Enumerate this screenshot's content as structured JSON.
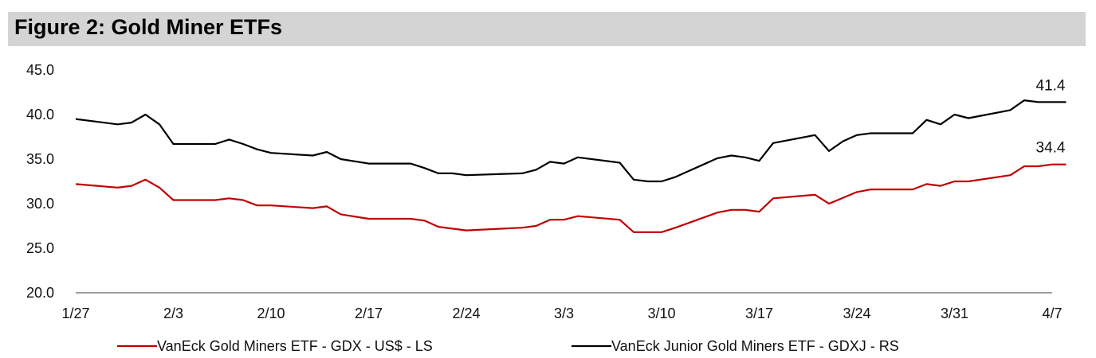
{
  "title": "Figure 2: Gold Miner ETFs",
  "chart_data": {
    "type": "line",
    "title": "Figure 2: Gold Miner ETFs",
    "xlabel": "",
    "ylabel": "",
    "ylim": [
      20,
      45
    ],
    "yticks": [
      "20.0",
      "25.0",
      "30.0",
      "35.0",
      "40.0",
      "45.0"
    ],
    "ytick_values": [
      20,
      25,
      30,
      35,
      40,
      45
    ],
    "xlim": [
      0,
      70
    ],
    "xticks": [
      {
        "label": "1/27",
        "x": 0
      },
      {
        "label": "2/3",
        "x": 7
      },
      {
        "label": "2/10",
        "x": 14
      },
      {
        "label": "2/17",
        "x": 21
      },
      {
        "label": "2/24",
        "x": 28
      },
      {
        "label": "3/3",
        "x": 35
      },
      {
        "label": "3/10",
        "x": 42
      },
      {
        "label": "3/17",
        "x": 49
      },
      {
        "label": "3/24",
        "x": 56
      },
      {
        "label": "3/31",
        "x": 63
      },
      {
        "label": "4/7",
        "x": 70
      }
    ],
    "series": [
      {
        "name": "VanEck Gold Miners ETF  - GDX  - US$ - LS",
        "color": "#c00000",
        "end_label": "34.4",
        "points": [
          [
            0,
            32.2
          ],
          [
            3,
            31.8
          ],
          [
            4,
            32.0
          ],
          [
            5,
            32.7
          ],
          [
            6,
            31.8
          ],
          [
            7,
            30.4
          ],
          [
            8,
            30.4
          ],
          [
            10,
            30.4
          ],
          [
            11,
            30.6
          ],
          [
            12,
            30.4
          ],
          [
            13,
            29.8
          ],
          [
            14,
            29.8
          ],
          [
            17,
            29.5
          ],
          [
            18,
            29.7
          ],
          [
            19,
            28.8
          ],
          [
            21,
            28.3
          ],
          [
            24,
            28.3
          ],
          [
            25,
            28.1
          ],
          [
            26,
            27.4
          ],
          [
            28,
            27.0
          ],
          [
            32,
            27.3
          ],
          [
            33,
            27.5
          ],
          [
            34,
            28.2
          ],
          [
            35,
            28.2
          ],
          [
            36,
            28.6
          ],
          [
            39,
            28.2
          ],
          [
            40,
            26.8
          ],
          [
            42,
            26.8
          ],
          [
            43,
            27.3
          ],
          [
            46,
            29.0
          ],
          [
            47,
            29.3
          ],
          [
            48,
            29.3
          ],
          [
            49,
            29.1
          ],
          [
            50,
            30.6
          ],
          [
            53,
            31.0
          ],
          [
            54,
            30.0
          ],
          [
            56,
            31.3
          ],
          [
            57,
            31.6
          ],
          [
            60,
            31.6
          ],
          [
            61,
            32.2
          ],
          [
            62,
            32.0
          ],
          [
            63,
            32.5
          ],
          [
            64,
            32.5
          ],
          [
            67,
            33.2
          ],
          [
            68,
            34.2
          ],
          [
            69,
            34.2
          ],
          [
            70,
            34.4
          ],
          [
            71,
            34.4
          ]
        ]
      },
      {
        "name": "VanEck Junior Gold Miners ETF - GDXJ - RS",
        "color": "#000000",
        "end_label": "41.4",
        "points": [
          [
            0,
            39.5
          ],
          [
            3,
            38.9
          ],
          [
            4,
            39.1
          ],
          [
            5,
            40.0
          ],
          [
            6,
            38.9
          ],
          [
            7,
            36.7
          ],
          [
            8,
            36.7
          ],
          [
            10,
            36.7
          ],
          [
            11,
            37.2
          ],
          [
            12,
            36.7
          ],
          [
            13,
            36.1
          ],
          [
            14,
            35.7
          ],
          [
            17,
            35.4
          ],
          [
            18,
            35.8
          ],
          [
            19,
            35.0
          ],
          [
            21,
            34.5
          ],
          [
            24,
            34.5
          ],
          [
            25,
            34.0
          ],
          [
            26,
            33.4
          ],
          [
            27,
            33.4
          ],
          [
            28,
            33.2
          ],
          [
            32,
            33.4
          ],
          [
            33,
            33.8
          ],
          [
            34,
            34.7
          ],
          [
            35,
            34.5
          ],
          [
            36,
            35.2
          ],
          [
            39,
            34.6
          ],
          [
            40,
            32.7
          ],
          [
            41,
            32.5
          ],
          [
            42,
            32.5
          ],
          [
            43,
            33.0
          ],
          [
            46,
            35.1
          ],
          [
            47,
            35.4
          ],
          [
            48,
            35.2
          ],
          [
            49,
            34.8
          ],
          [
            50,
            36.8
          ],
          [
            53,
            37.7
          ],
          [
            54,
            35.9
          ],
          [
            55,
            37.0
          ],
          [
            56,
            37.7
          ],
          [
            57,
            37.9
          ],
          [
            60,
            37.9
          ],
          [
            61,
            39.4
          ],
          [
            62,
            38.9
          ],
          [
            63,
            40.0
          ],
          [
            64,
            39.6
          ],
          [
            67,
            40.5
          ],
          [
            68,
            41.6
          ],
          [
            69,
            41.4
          ],
          [
            70,
            41.4
          ],
          [
            71,
            41.4
          ]
        ]
      }
    ],
    "legend_position": "bottom"
  }
}
